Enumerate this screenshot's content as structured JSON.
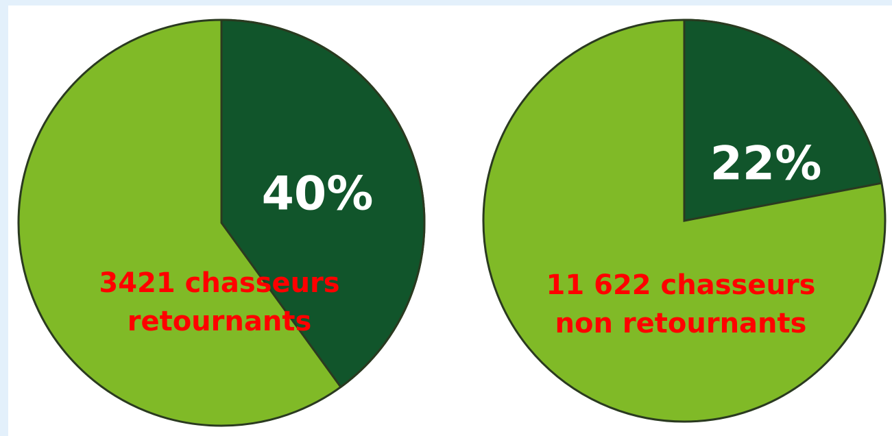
{
  "chart_data": [
    {
      "type": "pie",
      "values": [
        40
      ],
      "value_labels": [
        "40%"
      ],
      "color": "#11552b",
      "rest_color": "#80ba27",
      "annotation": [
        "3421 chasseurs",
        "retournants"
      ]
    },
    {
      "type": "pie",
      "values": [
        22
      ],
      "value_labels": [
        "22%"
      ],
      "color": "#11552b",
      "rest_color": "#80ba27",
      "annotation": [
        "11 622 chasseurs",
        "non retournants"
      ]
    }
  ]
}
